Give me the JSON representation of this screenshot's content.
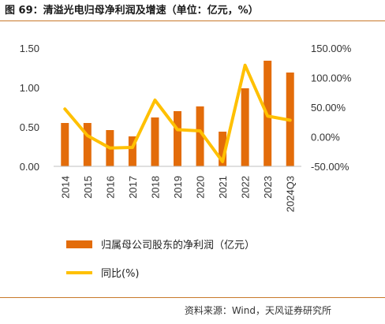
{
  "figure": {
    "title": "图 69：清溢光电归母净利润及增速（单位：亿元，%）",
    "source": "资料来源：Wind，天风证券研究所"
  },
  "chart_data": {
    "type": "bar",
    "categories": [
      "2014",
      "2015",
      "2016",
      "2017",
      "2018",
      "2019",
      "2020",
      "2021",
      "2022",
      "2023",
      "2024Q3"
    ],
    "series": [
      {
        "name": "归属母公司股东的净利润（亿元）",
        "kind": "bar",
        "axis": "left",
        "color": "#e36c0a",
        "values": [
          0.55,
          0.55,
          0.46,
          0.38,
          0.62,
          0.7,
          0.76,
          0.44,
          0.99,
          1.34,
          1.19
        ]
      },
      {
        "name": "同比(%)",
        "kind": "line",
        "axis": "right",
        "color": "#ffc000",
        "values": [
          47,
          2,
          -19,
          -18,
          62,
          12,
          10,
          -42,
          121,
          35,
          28
        ]
      }
    ],
    "y_left": {
      "ylim": [
        0,
        1.5
      ],
      "ticks": [
        "0.00",
        "0.50",
        "1.00",
        "1.50"
      ],
      "tick_values": [
        0,
        0.5,
        1.0,
        1.5
      ]
    },
    "y_right": {
      "ylim": [
        -50,
        150
      ],
      "ticks": [
        "-50.00%",
        "0.00%",
        "50.00%",
        "100.00%",
        "150.00%"
      ],
      "tick_values": [
        -50,
        0,
        50,
        100,
        150
      ]
    },
    "legend_position": "bottom",
    "grid": false
  }
}
